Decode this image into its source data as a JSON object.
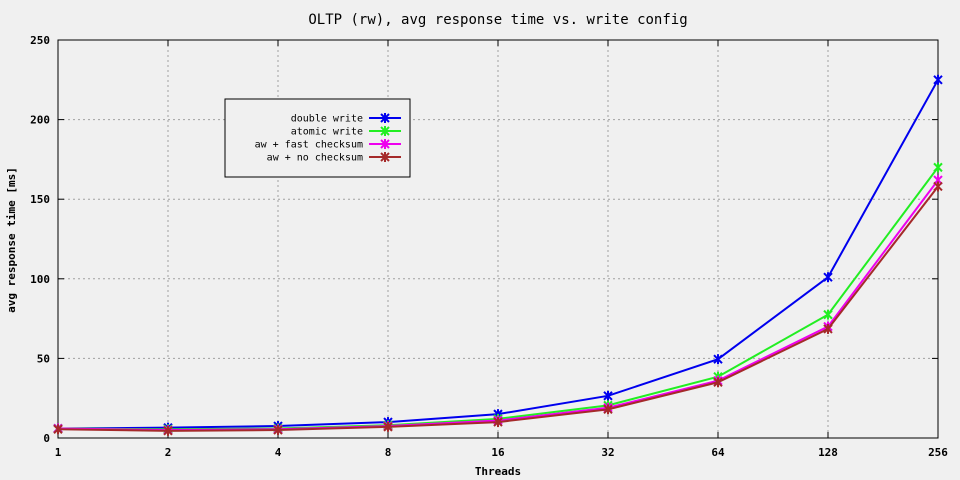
{
  "chart_data": {
    "type": "line",
    "title": "OLTP (rw), avg response time vs. write config",
    "xlabel": "Threads",
    "ylabel": "avg response time [ms]",
    "x_scale": "log2",
    "categories": [
      "1",
      "2",
      "4",
      "8",
      "16",
      "32",
      "64",
      "128",
      "256"
    ],
    "ylim": [
      0,
      250
    ],
    "yticks": [
      0,
      50,
      100,
      150,
      200,
      250
    ],
    "grid": true,
    "legend_position": "top-left",
    "series": [
      {
        "name": "double write",
        "color": "#0000ee",
        "values": [
          6,
          6.5,
          7.5,
          10,
          15,
          26.5,
          49.5,
          101,
          225
        ]
      },
      {
        "name": "atomic write",
        "color": "#22ee22",
        "values": [
          6,
          5.5,
          6,
          8,
          12,
          20.5,
          38.5,
          77.5,
          170
        ]
      },
      {
        "name": "aw + fast checksum",
        "color": "#ee00ee",
        "values": [
          6,
          5,
          5.5,
          7.5,
          11,
          19,
          36,
          70,
          162
        ]
      },
      {
        "name": "aw + no checksum",
        "color": "#a52a2a",
        "values": [
          5.5,
          4.5,
          5,
          7,
          10,
          18,
          35,
          68.5,
          158
        ]
      }
    ]
  }
}
